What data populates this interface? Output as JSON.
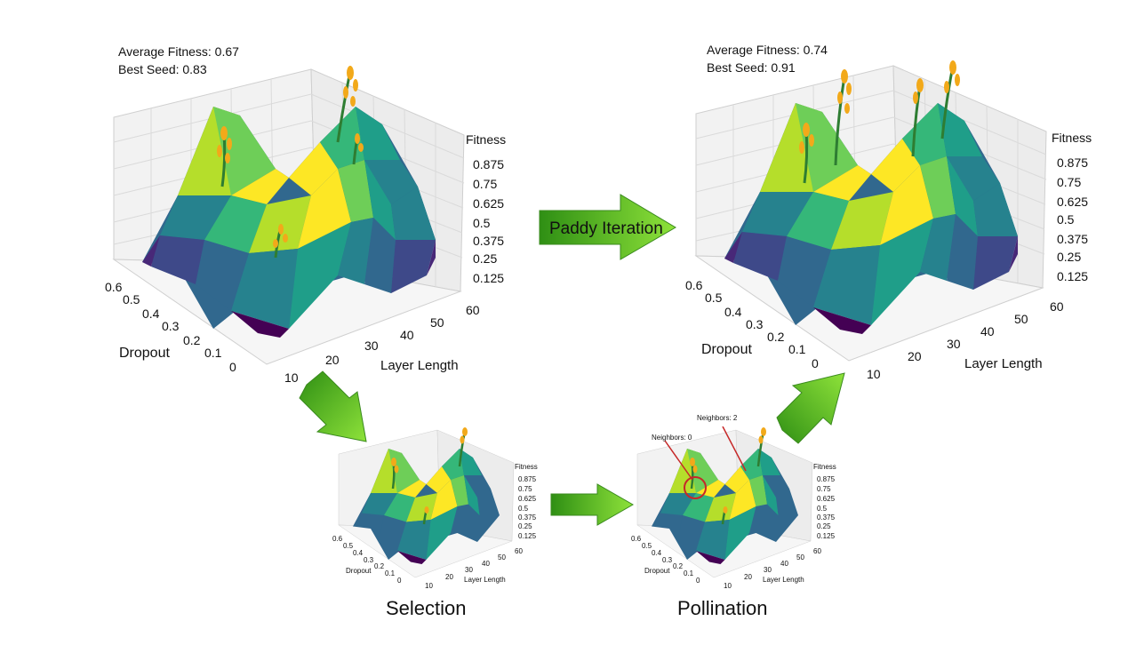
{
  "colors": {
    "viridis": [
      "#440154",
      "#482878",
      "#3e4989",
      "#31688e",
      "#26828e",
      "#1f9e89",
      "#35b779",
      "#6ece58",
      "#b5de2b",
      "#fde725"
    ],
    "arrow_dark": "#2f8f14",
    "arrow_light": "#8ee23a",
    "pane": "#f2f2f2",
    "grid": "#d0d0d0",
    "plant_stem": "#2e7d32",
    "plant_grain": "#f2a91a",
    "highlight_circle": "#c62828"
  },
  "panels": [
    {
      "id": "initial",
      "stats": {
        "avg": "Average Fitness: 0.67",
        "best": "Best Seed: 0.83"
      },
      "axes": {
        "z_label": "Fitness",
        "z_ticks": [
          "0.875",
          "0.75",
          "0.625",
          "0.5",
          "0.375",
          "0.25",
          "0.125"
        ],
        "dropout_label": "Dropout",
        "dropout_ticks": [
          "0.6",
          "0.5",
          "0.4",
          "0.3",
          "0.2",
          "0.1",
          "0"
        ],
        "layer_label": "Layer Length",
        "layer_ticks": [
          "10",
          "20",
          "30",
          "40",
          "50",
          "60"
        ]
      }
    },
    {
      "id": "iterated",
      "stats": {
        "avg": "Average Fitness: 0.74",
        "best": "Best Seed: 0.91"
      },
      "axes": {
        "z_label": "Fitness",
        "z_ticks": [
          "0.875",
          "0.75",
          "0.625",
          "0.5",
          "0.375",
          "0.25",
          "0.125"
        ],
        "dropout_label": "Dropout",
        "dropout_ticks": [
          "0.6",
          "0.5",
          "0.4",
          "0.3",
          "0.2",
          "0.1",
          "0"
        ],
        "layer_label": "Layer Length",
        "layer_ticks": [
          "10",
          "20",
          "30",
          "40",
          "50",
          "60"
        ]
      }
    },
    {
      "id": "selection",
      "caption": "Selection",
      "axes": {
        "z_label": "Fitness",
        "z_ticks": [
          "0.875",
          "0.75",
          "0.625",
          "0.5",
          "0.375",
          "0.25",
          "0.125"
        ],
        "dropout_label": "Dropout",
        "dropout_ticks": [
          "0.6",
          "0.5",
          "0.4",
          "0.3",
          "0.2",
          "0.1",
          "0"
        ],
        "layer_label": "Layer Length",
        "layer_ticks": [
          "10",
          "20",
          "30",
          "40",
          "50",
          "60"
        ]
      }
    },
    {
      "id": "pollination",
      "caption": "Pollination",
      "annotations": [
        "Neighbors: 0",
        "Neighbors: 2"
      ],
      "axes": {
        "z_label": "Fitness",
        "z_ticks": [
          "0.875",
          "0.75",
          "0.625",
          "0.5",
          "0.375",
          "0.25",
          "0.125"
        ],
        "dropout_label": "Dropout",
        "dropout_ticks": [
          "0.6",
          "0.5",
          "0.4",
          "0.3",
          "0.2",
          "0.1",
          "0"
        ],
        "layer_label": "Layer Length",
        "layer_ticks": [
          "10",
          "20",
          "30",
          "40",
          "50",
          "60"
        ]
      }
    }
  ],
  "arrows": {
    "main_label": "Paddy Iteration"
  }
}
